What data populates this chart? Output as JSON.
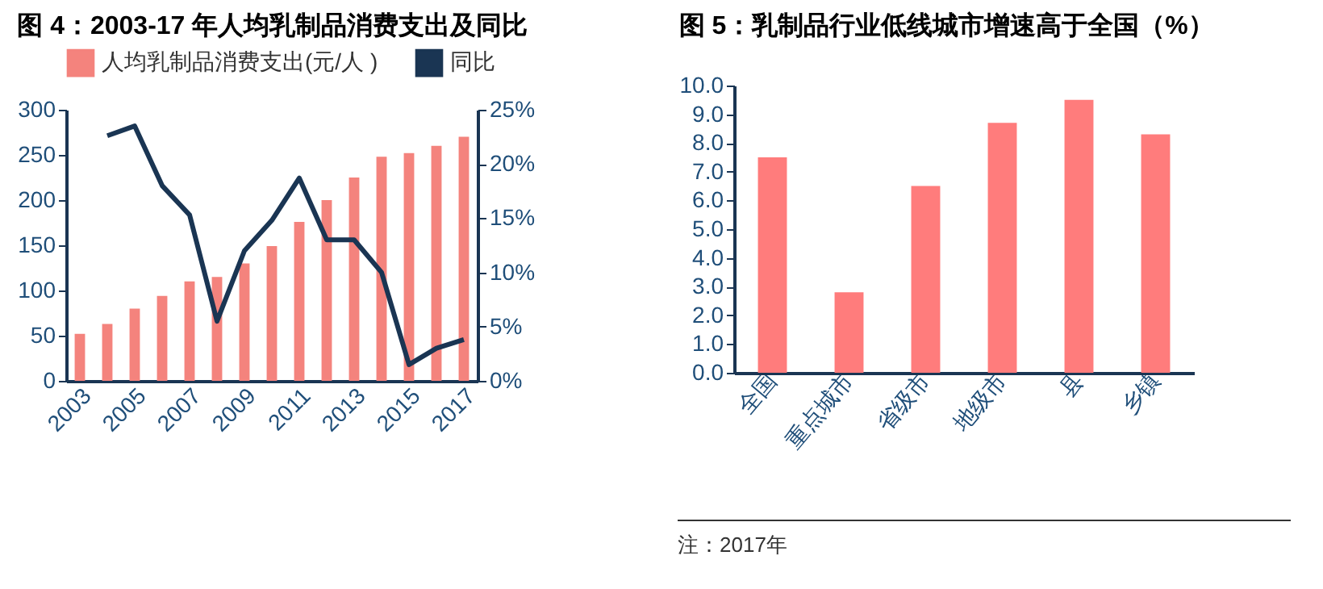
{
  "chart_data": [
    {
      "type": "bar",
      "title": "图 4：2003-17 年人均乳制品消费支出及同比",
      "categories": [
        "2003",
        null,
        "2005",
        null,
        "2007",
        null,
        "2009",
        null,
        "2011",
        null,
        "2013",
        null,
        "2015",
        null,
        "2017"
      ],
      "series": [
        {
          "name": "人均乳制品消费支出(元/人 )",
          "color": "#f4837d",
          "values": [
            52,
            63,
            80,
            94,
            110,
            115,
            130,
            149,
            176,
            200,
            225,
            248,
            252,
            260,
            270
          ]
        },
        {
          "name": "同比",
          "type": "line",
          "axis": "y2",
          "color": "#1a3553",
          "values": [
            null,
            22.6,
            23.5,
            18,
            15.3,
            5.5,
            12,
            14.8,
            18.7,
            13,
            13,
            10,
            1.5,
            3,
            3.8
          ]
        }
      ],
      "ylim": [
        0,
        300
      ],
      "yticks": [
        0,
        50,
        100,
        150,
        200,
        250,
        300
      ],
      "y2lim": [
        0,
        25
      ],
      "y2ticks": [
        {
          "value": 0,
          "label": "0%"
        },
        {
          "value": 5,
          "label": "5%"
        },
        {
          "value": 10,
          "label": "10%"
        },
        {
          "value": 15,
          "label": "15%"
        },
        {
          "value": 20,
          "label": "20%"
        },
        {
          "value": 25,
          "label": "25%"
        }
      ],
      "legend": "top"
    },
    {
      "type": "bar",
      "title": "图 5：乳制品行业低线城市增速高于全国（%）",
      "categories": [
        "全国",
        "重点城市",
        "省级市",
        "地级市",
        "县",
        "乡镇"
      ],
      "series": [
        {
          "color": "#ff7c7c",
          "values": [
            7.5,
            2.8,
            6.5,
            8.7,
            9.5,
            8.3
          ]
        }
      ],
      "ylim": [
        0,
        10
      ],
      "yticks": [
        {
          "value": 0,
          "label": "0.0"
        },
        {
          "value": 1,
          "label": "1.0"
        },
        {
          "value": 2,
          "label": "2.0"
        },
        {
          "value": 3,
          "label": "3.0"
        },
        {
          "value": 4,
          "label": "4.0"
        },
        {
          "value": 5,
          "label": "5.0"
        },
        {
          "value": 6,
          "label": "6.0"
        },
        {
          "value": 7,
          "label": "7.0"
        },
        {
          "value": 8,
          "label": "8.0"
        },
        {
          "value": 9,
          "label": "9.0"
        },
        {
          "value": 10,
          "label": "10.0"
        }
      ],
      "annotations": [
        "注：2017年"
      ]
    }
  ]
}
